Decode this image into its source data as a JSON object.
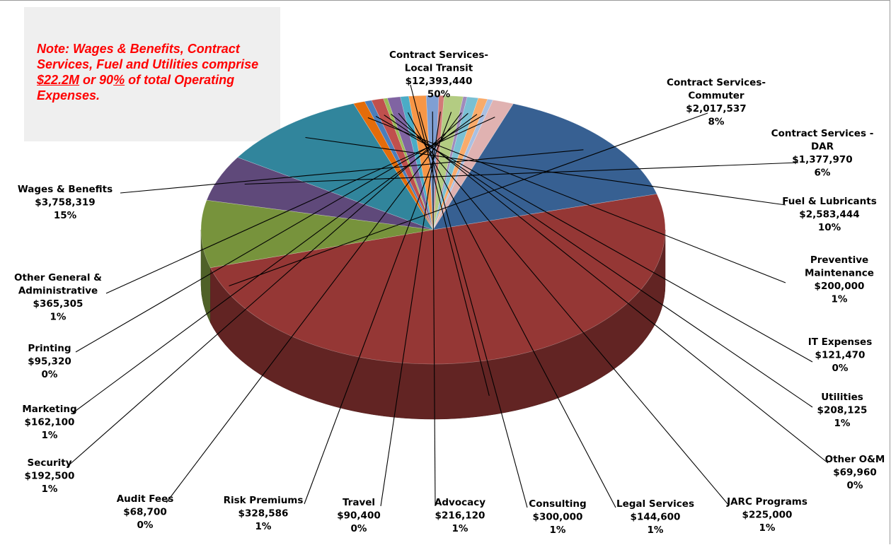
{
  "note": {
    "prefix": "Note: Wages & Benefits, Contract Services, Fuel and Utilities comprise ",
    "amount": "$22.2M",
    "middle": " or 90",
    "pct_sign": "%",
    "suffix": " of total Operating Expenses."
  },
  "chart_data": {
    "type": "pie",
    "title": "",
    "slices": [
      {
        "name": "Contract Services- Local Transit",
        "label_lines": [
          "Contract Services-",
          "Local Transit"
        ],
        "value": 12393440,
        "value_label": "$12,393,440",
        "pct_label": "50%",
        "color": "#953735"
      },
      {
        "name": "Contract Services- Commuter",
        "label_lines": [
          "Contract Services-",
          "Commuter"
        ],
        "value": 2017537,
        "value_label": "$2,017,537",
        "pct_label": "8%",
        "color": "#77933c"
      },
      {
        "name": "Contract Services - DAR",
        "label_lines": [
          "Contract Services -",
          "DAR"
        ],
        "value": 1377970,
        "value_label": "$1,377,970",
        "pct_label": "6%",
        "color": "#5f497a"
      },
      {
        "name": "Fuel & Lubricants",
        "label_lines": [
          "Fuel & Lubricants"
        ],
        "value": 2583444,
        "value_label": "$2,583,444",
        "pct_label": "10%",
        "color": "#31859c"
      },
      {
        "name": "Preventive Maintenance",
        "label_lines": [
          "Preventive",
          "Maintenance"
        ],
        "value": 200000,
        "value_label": "$200,000",
        "pct_label": "1%",
        "color": "#e46c0a"
      },
      {
        "name": "IT Expenses",
        "label_lines": [
          "IT Expenses"
        ],
        "value": 121470,
        "value_label": "$121,470",
        "pct_label": "0%",
        "color": "#4a7ebb"
      },
      {
        "name": "Utilities",
        "label_lines": [
          "Utilities"
        ],
        "value": 208125,
        "value_label": "$208,125",
        "pct_label": "1%",
        "color": "#c0504d"
      },
      {
        "name": "Other O&M",
        "label_lines": [
          "Other O&M"
        ],
        "value": 69960,
        "value_label": "$69,960",
        "pct_label": "0%",
        "color": "#9bbb59"
      },
      {
        "name": "JARC Programs",
        "label_lines": [
          "JARC Programs"
        ],
        "value": 225000,
        "value_label": "$225,000",
        "pct_label": "1%",
        "color": "#8064a2"
      },
      {
        "name": "Legal Services",
        "label_lines": [
          "Legal Services"
        ],
        "value": 144600,
        "value_label": "$144,600",
        "pct_label": "1%",
        "color": "#4bacc6"
      },
      {
        "name": "Consulting",
        "label_lines": [
          "Consulting"
        ],
        "value": 300000,
        "value_label": "$300,000",
        "pct_label": "1%",
        "color": "#f79646"
      },
      {
        "name": "Advocacy",
        "label_lines": [
          "Advocacy"
        ],
        "value": 216120,
        "value_label": "$216,120",
        "pct_label": "1%",
        "color": "#7f9fd3"
      },
      {
        "name": "Travel",
        "label_lines": [
          "Travel"
        ],
        "value": 90400,
        "value_label": "$90,400",
        "pct_label": "0%",
        "color": "#d27a77"
      },
      {
        "name": "Risk Premiums",
        "label_lines": [
          "Risk Premiums"
        ],
        "value": 328586,
        "value_label": "$328,586",
        "pct_label": "1%",
        "color": "#b3cc82"
      },
      {
        "name": "Audit Fees",
        "label_lines": [
          "Audit Fees"
        ],
        "value": 68700,
        "value_label": "$68,700",
        "pct_label": "0%",
        "color": "#a08bbc"
      },
      {
        "name": "Security",
        "label_lines": [
          "Security"
        ],
        "value": 192500,
        "value_label": "$192,500",
        "pct_label": "1%",
        "color": "#7ac0d3"
      },
      {
        "name": "Marketing",
        "label_lines": [
          "Marketing"
        ],
        "value": 162100,
        "value_label": "$162,100",
        "pct_label": "1%",
        "color": "#f9ab6b"
      },
      {
        "name": "Printing",
        "label_lines": [
          "Printing"
        ],
        "value": 95320,
        "value_label": "$95,320",
        "pct_label": "0%",
        "color": "#a9c0e2"
      },
      {
        "name": "Other General & Administrative",
        "label_lines": [
          "Other General &",
          "Administrative"
        ],
        "value": 365305,
        "value_label": "$365,305",
        "pct_label": "1%",
        "color": "#e0b2b1"
      },
      {
        "name": "Wages & Benefits",
        "label_lines": [
          "Wages & Benefits"
        ],
        "value": 3758319,
        "value_label": "$3,758,319",
        "pct_label": "15%",
        "color": "#376092"
      }
    ]
  }
}
